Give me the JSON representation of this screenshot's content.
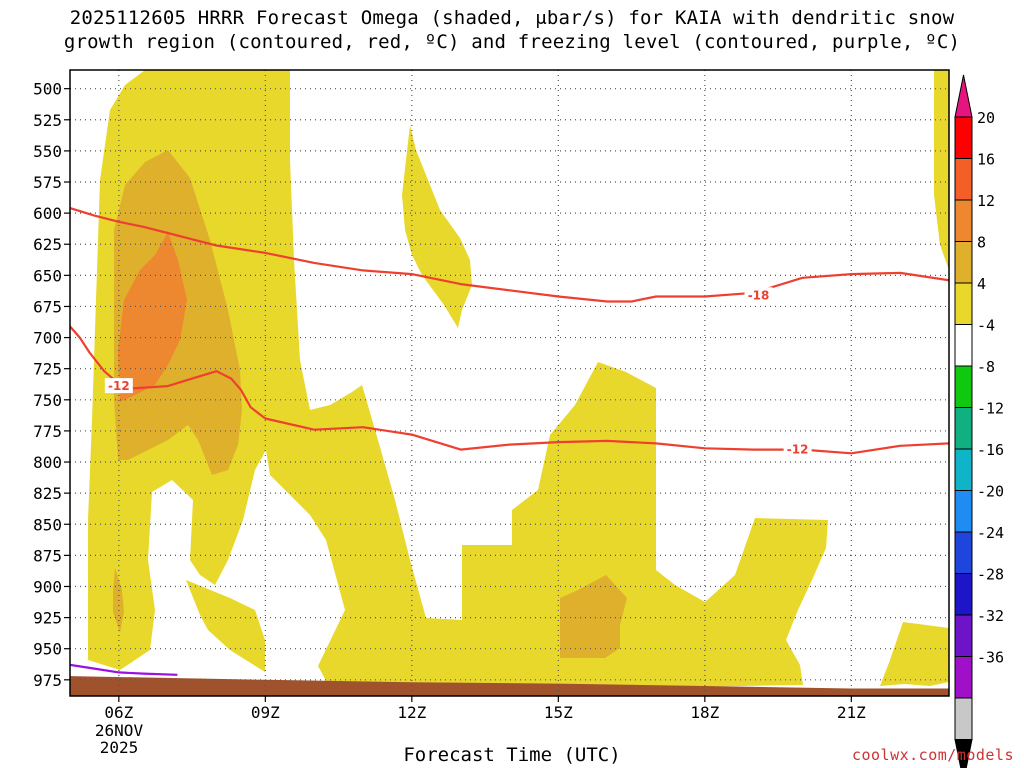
{
  "title": {
    "line1": "2025112605 HRRR Forecast Omega (shaded, μbar/s) for KAIA with dendritic snow",
    "line2": "growth region (contoured, red, ºC) and freezing level (contoured, purple, ºC)"
  },
  "chart_data": {
    "type": "heatmap",
    "title": "2025112605 HRRR Forecast Omega (shaded, μbar/s) for KAIA with dendritic snow growth region (contoured, red, ºC) and freezing level (contoured, purple, ºC)",
    "xlabel": "Forecast Time (UTC)",
    "ylabel": "",
    "x_ticks": [
      "06Z",
      "09Z",
      "12Z",
      "15Z",
      "18Z",
      "21Z"
    ],
    "x_tick_hours": [
      6,
      9,
      12,
      15,
      18,
      21
    ],
    "x_range_hours": [
      5,
      23
    ],
    "first_tick_date": [
      "26NOV",
      "2025"
    ],
    "y_ticks": [
      500,
      525,
      550,
      575,
      600,
      625,
      650,
      675,
      700,
      725,
      750,
      775,
      800,
      825,
      850,
      875,
      900,
      925,
      950,
      975
    ],
    "y_range_mb": [
      485,
      988
    ],
    "y_inverted": true,
    "grid": true,
    "colorbar": {
      "labels": [
        "20",
        "16",
        "12",
        "8",
        "4",
        "-4",
        "-8",
        "-12",
        "-16",
        "-20",
        "-24",
        "-28",
        "-32",
        "-36"
      ],
      "colors": [
        "#ff0000",
        "#f45f28",
        "#ee8830",
        "#dfb02c",
        "#e9d82c",
        "#ffffff",
        "#10c810",
        "#10b080",
        "#10b4c8",
        "#1e8cf0",
        "#1e46dc",
        "#1e14c8",
        "#6e14c8",
        "#a010c8",
        "#c8c8c8"
      ],
      "over_color": "#e6147e",
      "under_color": "#000000"
    },
    "omega_regions": [
      {
        "range": "4 to 8",
        "color": "#e9d82c",
        "hours": [
          5.3,
          23
        ],
        "pressure_mb": [
          497,
          980
        ]
      },
      {
        "range": "8 to 12",
        "color": "#dfb02c",
        "hours": [
          5.9,
          8.4
        ],
        "pressure_mb": [
          560,
          775
        ]
      },
      {
        "range": "12 to 16",
        "color": "#ee8830",
        "hours": [
          5.9,
          7.4
        ],
        "pressure_mb": [
          590,
          715
        ]
      },
      {
        "range": "8 to 12",
        "color": "#dfb02c",
        "hours": [
          5.8,
          6.2
        ],
        "pressure_mb": [
          870,
          920
        ]
      },
      {
        "range": "8 to 12",
        "color": "#dfb02c",
        "hours": [
          15,
          16.4
        ],
        "pressure_mb": [
          870,
          950
        ]
      }
    ],
    "contours": [
      {
        "name": "-18",
        "color": "#ee4030",
        "hours": [
          5,
          5.5,
          6,
          6.5,
          7,
          7.5,
          8,
          9,
          10,
          11,
          12,
          13,
          14,
          15,
          16,
          16.5,
          17,
          18,
          19,
          20,
          21,
          22,
          23
        ],
        "pressure_mb": [
          596,
          602,
          607,
          611,
          616,
          621,
          626,
          632,
          640,
          646,
          649,
          657,
          662,
          667,
          671,
          671,
          667,
          667,
          664,
          652,
          649,
          648,
          654
        ]
      },
      {
        "name": "-12",
        "color": "#ee4030",
        "hours": [
          5,
          5.2,
          5.4,
          5.7,
          6,
          6.2,
          7,
          7.5,
          8,
          8.3,
          8.5,
          8.7,
          9,
          10,
          11,
          12,
          13,
          14,
          15,
          16,
          17,
          18,
          19,
          20,
          21,
          22,
          23
        ],
        "pressure_mb": [
          691,
          700,
          712,
          727,
          737,
          741,
          739,
          733,
          727,
          733,
          742,
          756,
          765,
          774,
          772,
          778,
          790,
          786,
          784,
          783,
          785,
          789,
          790,
          790,
          793,
          787,
          785
        ]
      },
      {
        "name": "0",
        "color": "#9b10e0",
        "hours": [
          5,
          5.5,
          6,
          6.5,
          7.2
        ],
        "pressure_mb": [
          963,
          966,
          969,
          970,
          971
        ]
      }
    ],
    "contour_labels": [
      {
        "text": "-18",
        "hour": 19.1,
        "pressure_mb": 666
      },
      {
        "text": "-12",
        "hour": 6.0,
        "pressure_mb": 739
      },
      {
        "text": "-12",
        "hour": 19.9,
        "pressure_mb": 790
      }
    ],
    "terrain": {
      "color": "#a0522d",
      "hours": [
        5,
        9,
        12,
        15,
        18,
        21,
        23
      ],
      "pressure_mb": [
        972,
        975,
        977,
        978,
        980,
        982,
        982
      ]
    }
  },
  "footer": {
    "xlabel": "Forecast Time (UTC)",
    "date_line1": "26NOV",
    "date_line2": "2025",
    "credit": "coolwx.com/models"
  }
}
